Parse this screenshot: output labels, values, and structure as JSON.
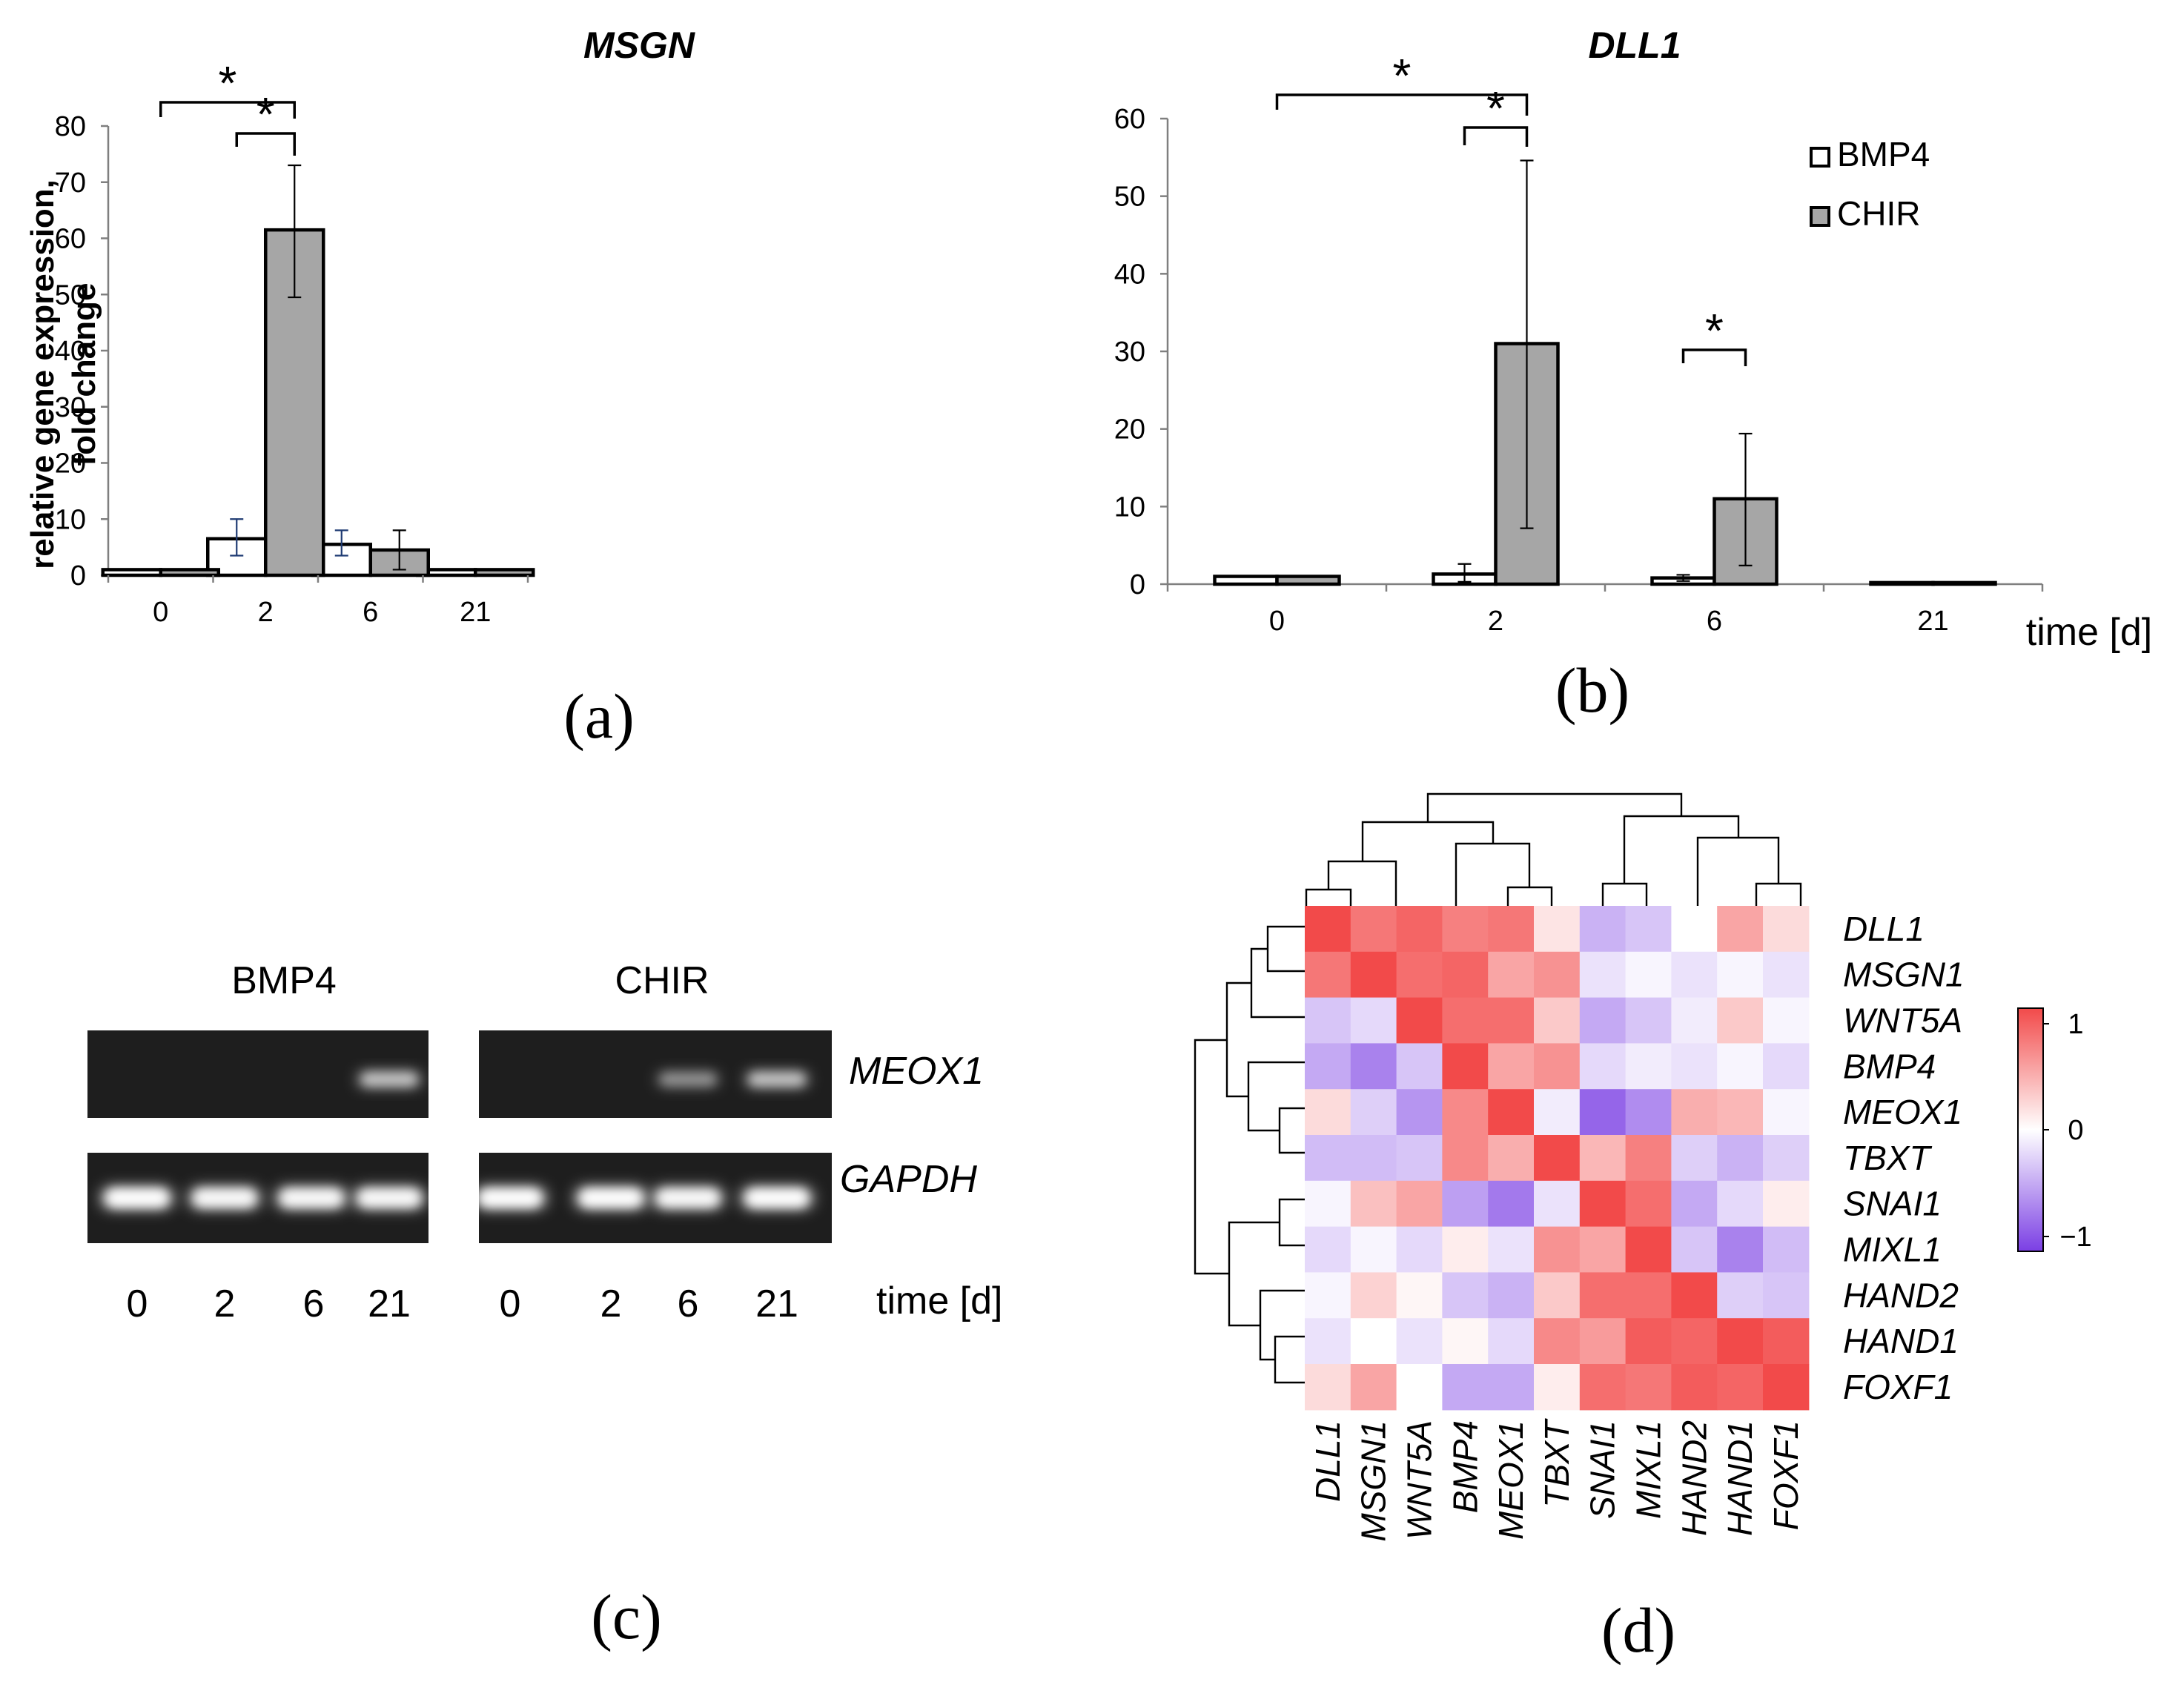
{
  "figure": {
    "panels": {
      "a": "(a)",
      "b": "(b)",
      "c": "(c)",
      "d": "(d)"
    },
    "y_axis_label_line1": "relative gene expression,",
    "y_axis_label_line2": "fold change",
    "x_axis_label": "time [d]",
    "legend": [
      "BMP4",
      "CHIR"
    ],
    "colors": {
      "BMP4": "#ffffff",
      "CHIR": "#a6a6a6",
      "heat_high": "#f24a4a",
      "heat_mid": "#ffffff",
      "heat_low": "#7b3fe4"
    }
  },
  "chart_data": [
    {
      "id": "a",
      "type": "bar",
      "title": "MSGN",
      "categories": [
        "0",
        "2",
        "6",
        "21"
      ],
      "series": [
        {
          "name": "BMP4",
          "values": [
            1,
            6.5,
            5.5,
            1
          ],
          "err_low": [
            0,
            3,
            2,
            0
          ],
          "err_high": [
            0,
            3.5,
            2.5,
            0
          ]
        },
        {
          "name": "CHIR",
          "values": [
            1,
            61.5,
            4.5,
            1
          ],
          "err_low": [
            0,
            12,
            3.5,
            0
          ],
          "err_high": [
            0,
            11.5,
            3.5,
            0
          ]
        }
      ],
      "ylim": [
        0,
        80
      ],
      "yticks": [
        "0",
        "10",
        "20",
        "30",
        "40",
        "50",
        "60",
        "70",
        "80"
      ],
      "significance": [
        {
          "label": "*",
          "from": "0",
          "to": "2 CHIR"
        },
        {
          "label": "*",
          "from": "2 BMP4",
          "to": "2 CHIR"
        }
      ]
    },
    {
      "id": "b",
      "type": "bar",
      "title": "DLL1",
      "categories": [
        "0",
        "2",
        "6",
        "21"
      ],
      "series": [
        {
          "name": "BMP4",
          "values": [
            1,
            1.3,
            0.8,
            0.2
          ],
          "err_low": [
            0,
            1,
            0.4,
            0
          ],
          "err_high": [
            0,
            1.3,
            0.4,
            0
          ]
        },
        {
          "name": "CHIR",
          "values": [
            1,
            31,
            11,
            0.2
          ],
          "err_low": [
            0,
            23.8,
            8.6,
            0
          ],
          "err_high": [
            0,
            23.6,
            8.4,
            0
          ]
        }
      ],
      "ylim": [
        0,
        60
      ],
      "yticks": [
        "0",
        "10",
        "20",
        "30",
        "40",
        "50",
        "60"
      ],
      "significance": [
        {
          "label": "*",
          "from": "0",
          "to": "2 CHIR"
        },
        {
          "label": "*",
          "from": "2 BMP4",
          "to": "2 CHIR"
        },
        {
          "label": "*",
          "from": "6 BMP4",
          "to": "6 CHIR"
        }
      ]
    },
    {
      "id": "d",
      "type": "heatmap",
      "rows": [
        "DLL1",
        "MSGN1",
        "WNT5A",
        "BMP4",
        "MEOX1",
        "TBXT",
        "SNAI1",
        "MIXL1",
        "HAND2",
        "HAND1",
        "FOXF1"
      ],
      "cols": [
        "DLL1",
        "MSGN1",
        "WNT5A",
        "BMP4",
        "MEOX1",
        "TBXT",
        "SNAI1",
        "MIXL1",
        "HAND2",
        "HAND1",
        "FOXF1"
      ],
      "values": [
        [
          1.0,
          0.75,
          0.85,
          0.7,
          0.75,
          0.15,
          -0.4,
          -0.3,
          0.0,
          0.5,
          0.2
        ],
        [
          0.75,
          1.0,
          0.8,
          0.85,
          0.5,
          0.6,
          -0.15,
          -0.05,
          -0.15,
          -0.05,
          -0.15
        ],
        [
          -0.3,
          -0.2,
          1.0,
          0.8,
          0.8,
          0.3,
          -0.45,
          -0.3,
          -0.1,
          0.3,
          -0.05
        ],
        [
          -0.45,
          -0.65,
          -0.3,
          1.0,
          0.5,
          0.6,
          -0.2,
          -0.1,
          -0.15,
          -0.05,
          -0.2
        ],
        [
          0.2,
          -0.25,
          -0.55,
          0.65,
          1.0,
          -0.1,
          -0.8,
          -0.6,
          0.45,
          0.4,
          -0.05
        ],
        [
          -0.35,
          -0.35,
          -0.3,
          0.65,
          0.45,
          1.0,
          0.4,
          0.7,
          -0.25,
          -0.4,
          -0.25
        ],
        [
          -0.05,
          0.35,
          0.5,
          -0.5,
          -0.7,
          -0.15,
          1.0,
          0.8,
          -0.45,
          -0.2,
          0.1
        ],
        [
          -0.2,
          -0.05,
          -0.2,
          0.1,
          -0.15,
          0.6,
          0.5,
          1.0,
          -0.3,
          -0.65,
          -0.35
        ],
        [
          -0.05,
          0.25,
          0.05,
          -0.3,
          -0.4,
          0.3,
          0.8,
          0.8,
          1.0,
          -0.25,
          -0.3
        ],
        [
          -0.15,
          0.0,
          -0.15,
          0.05,
          -0.2,
          0.65,
          0.55,
          0.9,
          0.85,
          1.0,
          0.9
        ],
        [
          0.2,
          0.5,
          0.0,
          -0.45,
          -0.45,
          0.1,
          0.8,
          0.75,
          0.9,
          0.85,
          1.0
        ]
      ],
      "scale": {
        "min": -1,
        "max": 1,
        "ticks": [
          "1",
          "0",
          "−1"
        ]
      }
    }
  ],
  "gel": {
    "groups": [
      "BMP4",
      "CHIR"
    ],
    "genes": [
      "MEOX1",
      "GAPDH"
    ],
    "lanes": [
      {
        "group": "BMP4",
        "label": "0",
        "meox1": 0.0,
        "gapdh": 1.0
      },
      {
        "group": "BMP4",
        "label": "2",
        "meox1": 0.0,
        "gapdh": 0.95
      },
      {
        "group": "BMP4",
        "label": "6",
        "meox1": 0.0,
        "gapdh": 0.95
      },
      {
        "group": "BMP4",
        "label": "21",
        "meox1": 0.8,
        "gapdh": 0.95
      },
      {
        "group": "CHIR",
        "label": "0",
        "meox1": 0.0,
        "gapdh": 1.0
      },
      {
        "group": "CHIR",
        "label": "2",
        "meox1": 0.0,
        "gapdh": 1.0
      },
      {
        "group": "CHIR",
        "label": "6",
        "meox1": 0.5,
        "gapdh": 0.95
      },
      {
        "group": "CHIR",
        "label": "21",
        "meox1": 0.8,
        "gapdh": 1.0
      }
    ],
    "time_label": "time [d]"
  }
}
